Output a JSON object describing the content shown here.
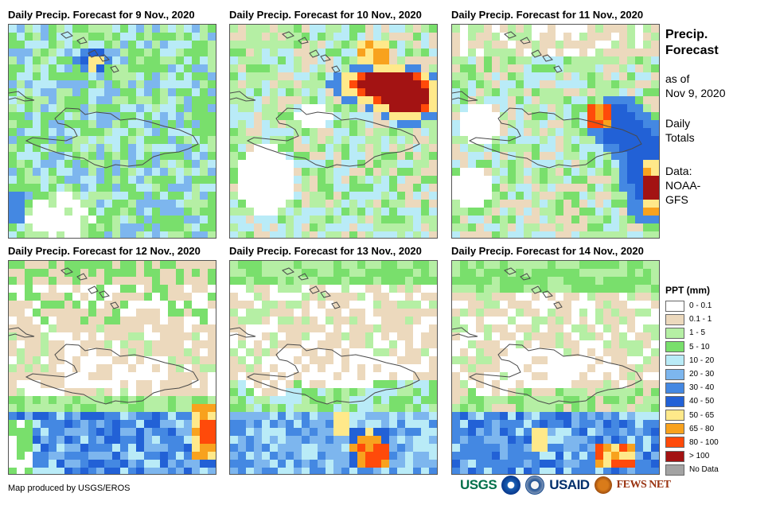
{
  "panels": [
    {
      "title": "Daily Precip. Forecast for 9 Nov., 2020"
    },
    {
      "title": "Daily Precip. Forecast for 10 Nov., 2020"
    },
    {
      "title": "Daily Precip. Forecast for 11 Nov., 2020"
    },
    {
      "title": "Daily Precip. Forecast for 12 Nov., 2020"
    },
    {
      "title": "Daily Precip. Forecast for 13 Nov., 2020"
    },
    {
      "title": "Daily Precip. Forecast for 14 Nov., 2020"
    }
  ],
  "side": {
    "title_line1": "Precip.",
    "title_line2": "Forecast",
    "asof_line1": "as of",
    "asof_line2": "Nov 9, 2020",
    "daily_line1": "Daily",
    "daily_line2": "Totals",
    "data_line1": "Data:",
    "data_line2": "NOAA-",
    "data_line3": "GFS"
  },
  "legend": {
    "title": "PPT (mm)",
    "items": [
      {
        "label": "0 - 0.1",
        "color": "#ffffff"
      },
      {
        "label": "0.1 - 1",
        "color": "#ecd9bd"
      },
      {
        "label": "1 - 5",
        "color": "#b5efa4"
      },
      {
        "label": "5 - 10",
        "color": "#79df6c"
      },
      {
        "label": "10 - 20",
        "color": "#b9ebf7"
      },
      {
        "label": "20 - 30",
        "color": "#7db6ee"
      },
      {
        "label": "30 - 40",
        "color": "#4488e2"
      },
      {
        "label": "40 - 50",
        "color": "#2261d6"
      },
      {
        "label": "50 - 65",
        "color": "#ffe98a"
      },
      {
        "label": "65 - 80",
        "color": "#f8a21e"
      },
      {
        "label": "80 - 100",
        "color": "#ff4a0a"
      },
      {
        "label": "> 100",
        "color": "#a31313"
      },
      {
        "label": "No Data",
        "color": "#a3a3a3"
      }
    ]
  },
  "credit": "Map produced by USGS/EROS",
  "logos": {
    "usgs": "USGS",
    "usaid": "USAID",
    "fewsnet": "FEWS NET"
  }
}
